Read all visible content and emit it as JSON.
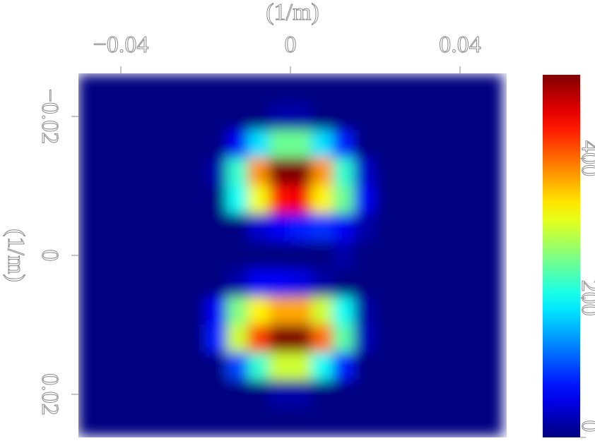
{
  "chart_data": {
    "type": "heatmap",
    "xlabel": "(1/m)",
    "ylabel": "(1/m)",
    "xaxis_position": "top",
    "yinvert": true,
    "colormap": "jet",
    "xlim": [
      -0.05,
      0.051
    ],
    "ylim": [
      -0.0262,
      0.0262
    ],
    "xticks": [
      {
        "value": -0.04,
        "label": "−0.04"
      },
      0,
      0.04
    ],
    "yticks": [
      {
        "value": -0.02,
        "label": "−0.02"
      },
      0,
      0.02
    ],
    "clim": [
      0,
      520
    ],
    "cticks": [
      0,
      200,
      400
    ],
    "x": [
      -0.0475,
      -0.0425,
      -0.0375,
      -0.0325,
      -0.0275,
      -0.0225,
      -0.0175,
      -0.0125,
      -0.0075,
      -0.0025,
      0.0025,
      0.0075,
      0.0125,
      0.0175,
      0.0225,
      0.0275,
      0.0325,
      0.0375,
      0.0425,
      0.0475
    ],
    "y": [
      -0.024,
      -0.02,
      -0.016,
      -0.012,
      -0.008,
      -0.004,
      0,
      0.004,
      0.008,
      0.012,
      0.016,
      0.02,
      0.024
    ],
    "z": [
      [
        0,
        0,
        0,
        0,
        0,
        0,
        0,
        0,
        0,
        0,
        0,
        0,
        0,
        0,
        0,
        0,
        0,
        0,
        0,
        0
      ],
      [
        0,
        0,
        0,
        0,
        0,
        0,
        0,
        0,
        0,
        20,
        20,
        0,
        0,
        0,
        0,
        0,
        0,
        0,
        0,
        0
      ],
      [
        0,
        0,
        0,
        0,
        0,
        0,
        0,
        60,
        180,
        250,
        250,
        180,
        80,
        0,
        0,
        0,
        0,
        0,
        0,
        0
      ],
      [
        0,
        0,
        0,
        0,
        0,
        0,
        20,
        220,
        380,
        520,
        520,
        380,
        220,
        40,
        0,
        0,
        0,
        0,
        0,
        0
      ],
      [
        0,
        0,
        0,
        0,
        0,
        0,
        0,
        200,
        320,
        450,
        460,
        330,
        250,
        60,
        0,
        0,
        0,
        0,
        0,
        0
      ],
      [
        0,
        0,
        0,
        0,
        0,
        0,
        0,
        0,
        40,
        60,
        80,
        90,
        60,
        20,
        0,
        0,
        0,
        0,
        0,
        0
      ],
      [
        0,
        0,
        0,
        0,
        0,
        0,
        0,
        0,
        0,
        0,
        0,
        0,
        20,
        0,
        0,
        0,
        0,
        0,
        0,
        0
      ],
      [
        0,
        0,
        0,
        0,
        0,
        0,
        0,
        20,
        60,
        60,
        50,
        20,
        0,
        0,
        0,
        0,
        0,
        0,
        0,
        0
      ],
      [
        0,
        0,
        0,
        0,
        0,
        0,
        60,
        260,
        330,
        370,
        370,
        300,
        200,
        20,
        0,
        0,
        0,
        0,
        0,
        0
      ],
      [
        0,
        0,
        0,
        0,
        0,
        0,
        80,
        300,
        420,
        520,
        520,
        400,
        240,
        30,
        0,
        0,
        0,
        0,
        0,
        0
      ],
      [
        0,
        0,
        0,
        0,
        0,
        0,
        0,
        100,
        220,
        300,
        300,
        200,
        80,
        0,
        0,
        0,
        0,
        0,
        0,
        0
      ],
      [
        0,
        0,
        0,
        0,
        0,
        0,
        0,
        0,
        0,
        20,
        20,
        0,
        0,
        0,
        0,
        0,
        0,
        0,
        0,
        0
      ],
      [
        0,
        0,
        0,
        0,
        0,
        0,
        0,
        0,
        0,
        0,
        0,
        0,
        0,
        0,
        0,
        0,
        0,
        0,
        0,
        0
      ]
    ]
  }
}
